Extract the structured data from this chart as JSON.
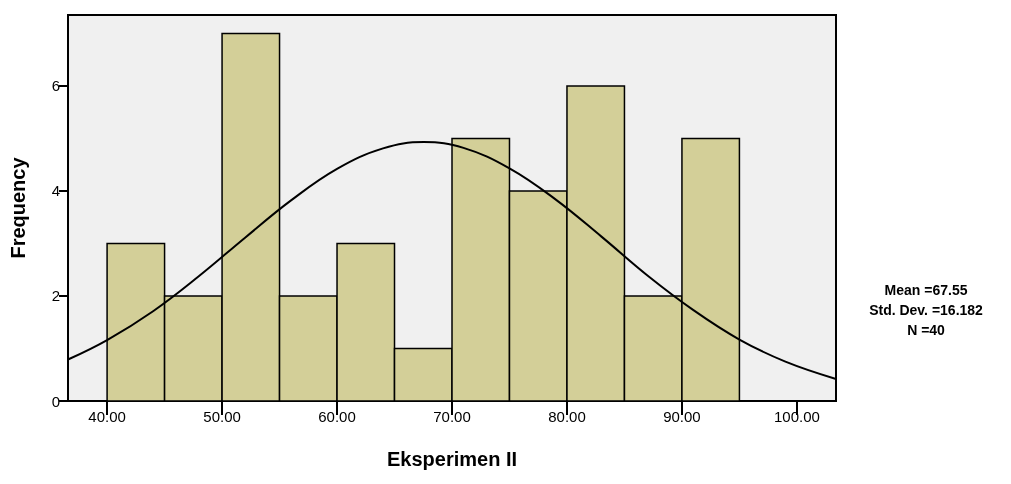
{
  "chart_data": {
    "type": "histogram",
    "xlabel": "Eksperimen II",
    "ylabel": "Frequency",
    "bins": [
      40,
      45,
      50,
      55,
      60,
      65,
      70,
      75,
      80,
      85,
      90,
      95
    ],
    "values": [
      3,
      2,
      7,
      2,
      3,
      1,
      5,
      4,
      6,
      2,
      5
    ],
    "color": "#d3cf98",
    "series": [
      {
        "type": "line",
        "color": "#000000",
        "marker": "none",
        "x": [
          36.6,
          40,
          44,
          48,
          52,
          56,
          60,
          64,
          67.55,
          71,
          75,
          79,
          83,
          87,
          91,
          95,
          99,
          103.4
        ],
        "values": [
          0.79,
          1.16,
          1.71,
          2.38,
          3.11,
          3.82,
          4.42,
          4.81,
          4.93,
          4.82,
          4.43,
          3.84,
          3.13,
          2.39,
          1.73,
          1.17,
          0.75,
          0.42
        ]
      }
    ],
    "xlim": [
      36.6,
      103.4
    ],
    "xticks": [
      {
        "value": 40,
        "label": "40.00"
      },
      {
        "value": 50,
        "label": "50.00"
      },
      {
        "value": 60,
        "label": "60.00"
      },
      {
        "value": 70,
        "label": "70.00"
      },
      {
        "value": 80,
        "label": "80.00"
      },
      {
        "value": 90,
        "label": "90.00"
      },
      {
        "value": 100,
        "label": "100.00"
      }
    ],
    "ylim": [
      0,
      7.35
    ],
    "yticks": [
      0,
      2,
      4,
      6
    ],
    "grid": false,
    "annotations": [
      "Mean =67.55",
      "Std. Dev. =16.182",
      "N =40"
    ]
  }
}
